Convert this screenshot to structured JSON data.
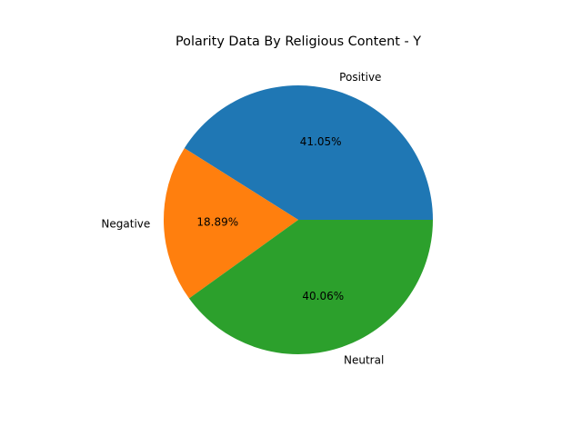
{
  "chart_data": {
    "type": "pie",
    "title": "Polarity Data By Religious Content - Y",
    "start_angle_deg": 0,
    "direction": "counterclockwise",
    "slices": [
      {
        "label": "Positive",
        "value": 41.05,
        "percent_label": "41.05%",
        "color": "#1f77b4"
      },
      {
        "label": "Negative",
        "value": 18.89,
        "percent_label": "18.89%",
        "color": "#ff7f0e"
      },
      {
        "label": "Neutral",
        "value": 40.06,
        "percent_label": "40.06%",
        "color": "#2ca02c"
      }
    ]
  }
}
